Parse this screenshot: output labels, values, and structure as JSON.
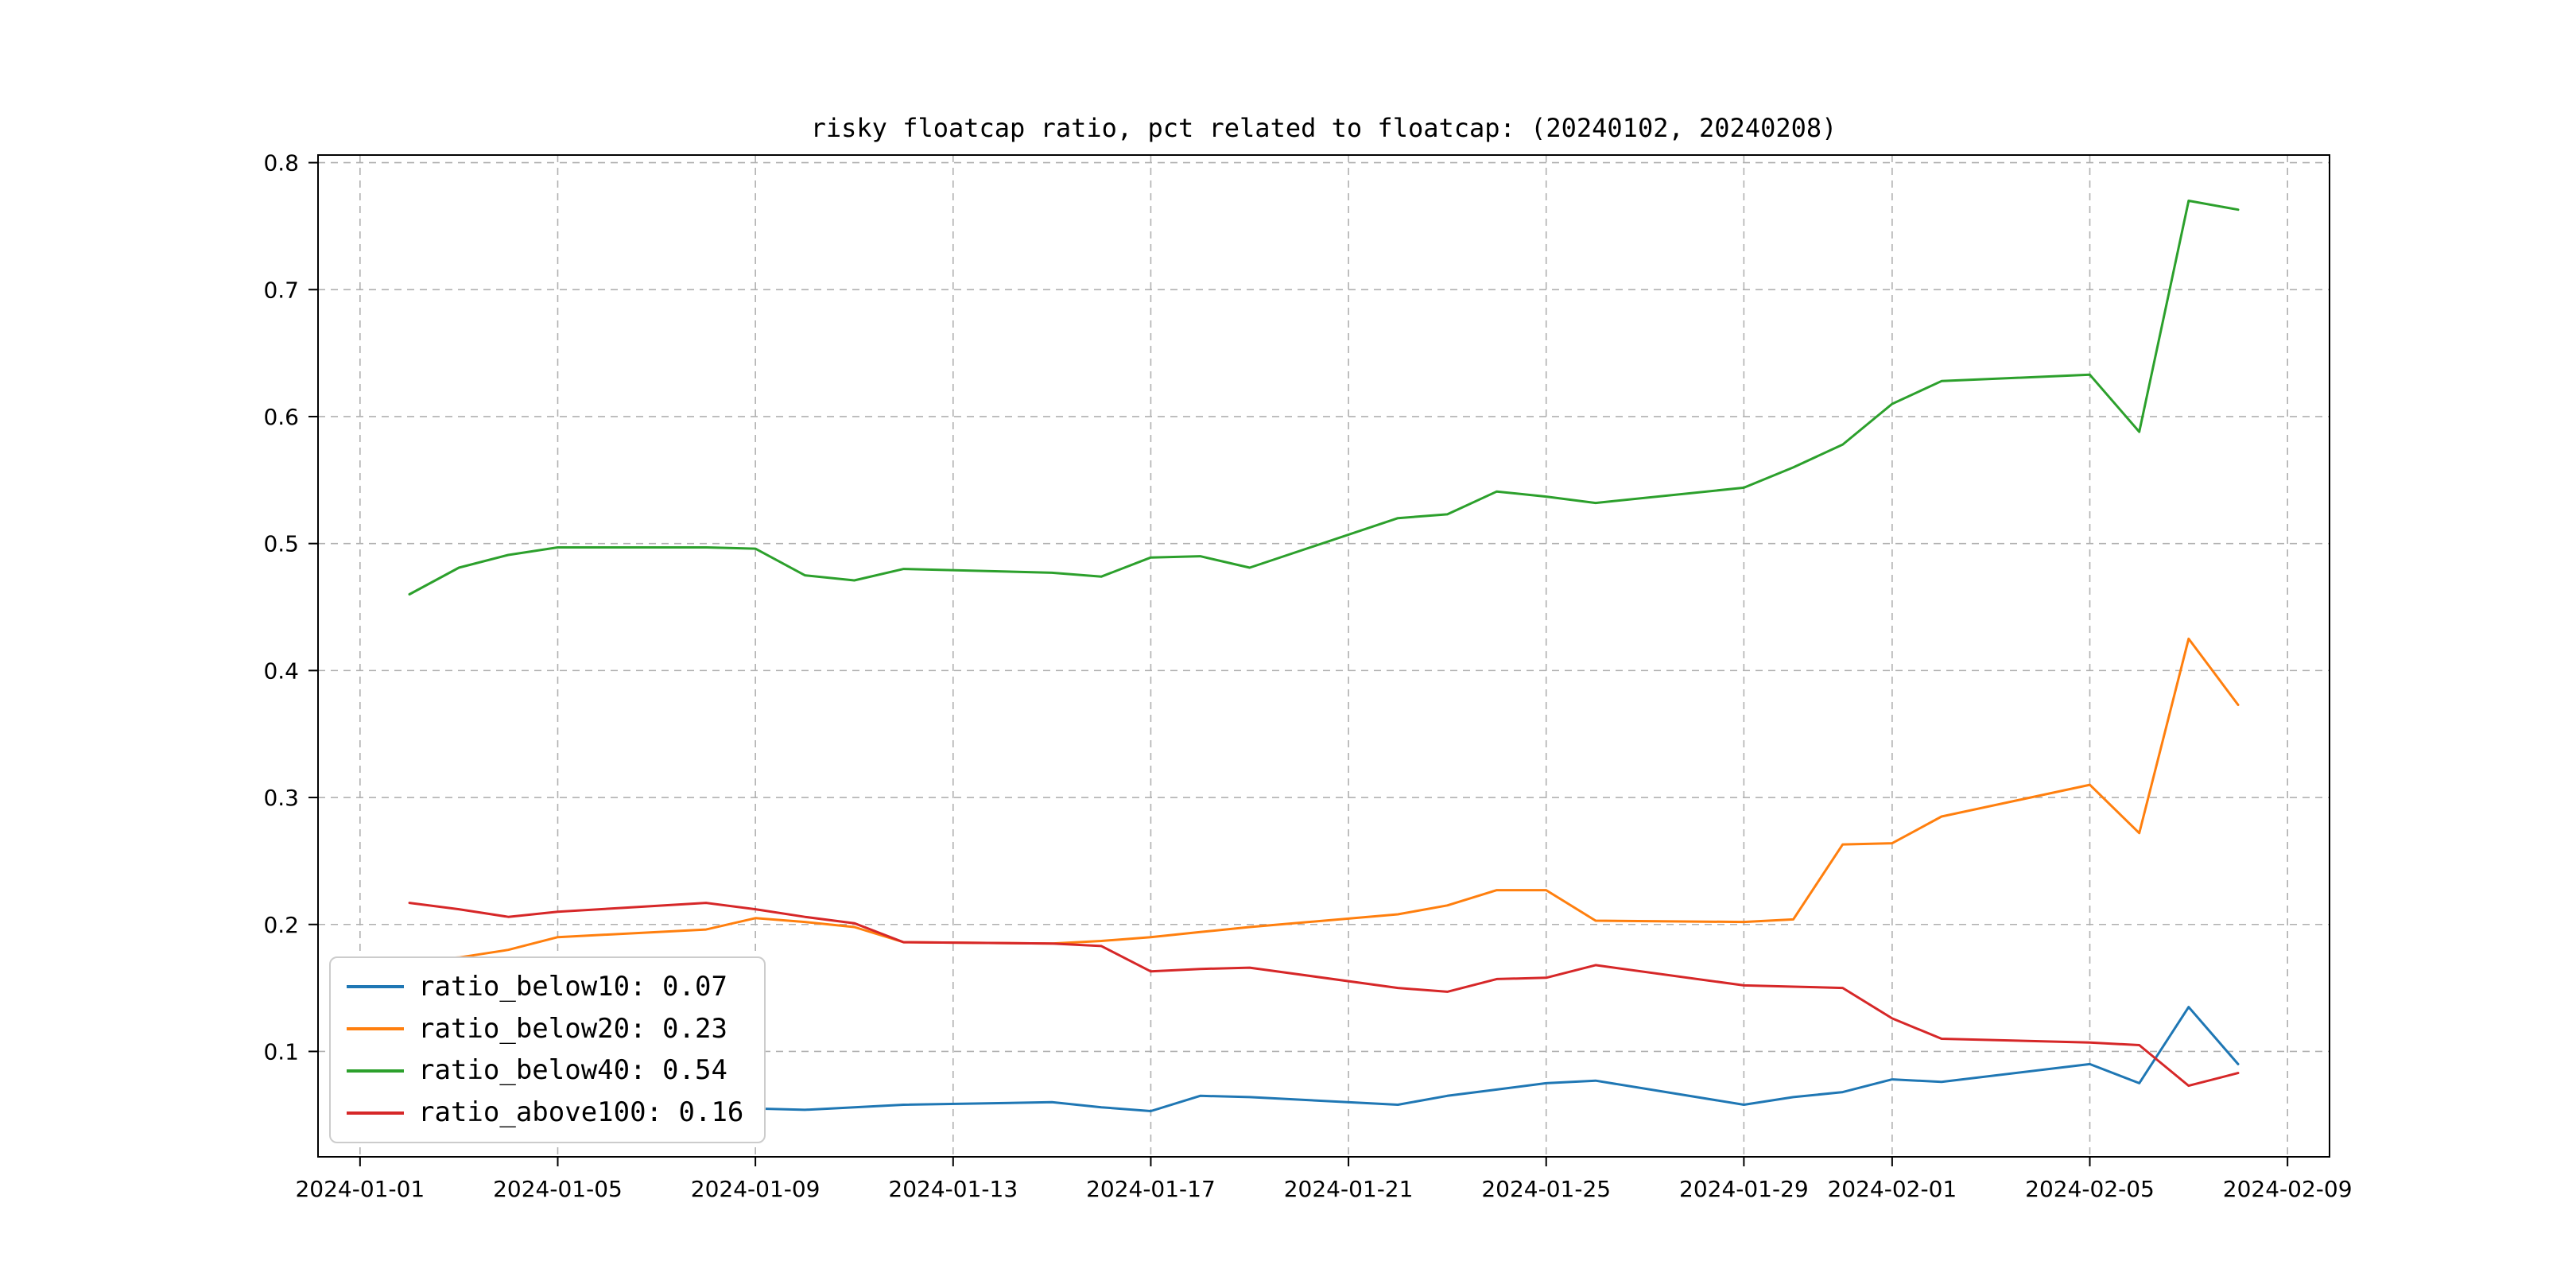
{
  "figure": {
    "title": "risky floatcap ratio, pct related to floatcap: (20240102, 20240208)"
  },
  "chart_data": {
    "type": "line",
    "title": "risky floatcap ratio, pct related to floatcap: (20240102, 20240208)",
    "xlabel": "",
    "ylabel": "",
    "grid": true,
    "grid_style": "dashed",
    "grid_color": "#b0b0b0",
    "legend_position": "lower-left",
    "xlim_days": [
      -0.85,
      39.85
    ],
    "ylim": [
      0.017,
      0.806
    ],
    "x_ticks": [
      "2024-01-01",
      "2024-01-05",
      "2024-01-09",
      "2024-01-13",
      "2024-01-17",
      "2024-01-21",
      "2024-01-25",
      "2024-01-29",
      "2024-02-01",
      "2024-02-05",
      "2024-02-09"
    ],
    "y_ticks": [
      0.1,
      0.2,
      0.3,
      0.4,
      0.5,
      0.6,
      0.7,
      0.8
    ],
    "dates": [
      "2024-01-02",
      "2024-01-03",
      "2024-01-04",
      "2024-01-05",
      "2024-01-08",
      "2024-01-09",
      "2024-01-10",
      "2024-01-11",
      "2024-01-12",
      "2024-01-15",
      "2024-01-16",
      "2024-01-17",
      "2024-01-18",
      "2024-01-19",
      "2024-01-22",
      "2024-01-23",
      "2024-01-24",
      "2024-01-25",
      "2024-01-26",
      "2024-01-29",
      "2024-01-30",
      "2024-01-31",
      "2024-02-01",
      "2024-02-02",
      "2024-02-05",
      "2024-02-06",
      "2024-02-07",
      "2024-02-08"
    ],
    "series": [
      {
        "name": "ratio_below10",
        "legend_label": "ratio_below10: 0.07",
        "color": "#1f77b4",
        "values": [
          0.065,
          0.062,
          0.06,
          0.058,
          0.056,
          0.055,
          0.054,
          0.056,
          0.058,
          0.06,
          0.056,
          0.053,
          0.065,
          0.064,
          0.058,
          0.065,
          0.07,
          0.075,
          0.077,
          0.058,
          0.064,
          0.068,
          0.078,
          0.076,
          0.09,
          0.075,
          0.135,
          0.09
        ]
      },
      {
        "name": "ratio_below20",
        "legend_label": "ratio_below20: 0.23",
        "color": "#ff7f0e",
        "values": [
          0.172,
          0.174,
          0.18,
          0.19,
          0.196,
          0.205,
          0.202,
          0.198,
          0.186,
          0.185,
          0.187,
          0.19,
          0.194,
          0.198,
          0.208,
          0.215,
          0.227,
          0.227,
          0.203,
          0.202,
          0.204,
          0.263,
          0.264,
          0.285,
          0.31,
          0.272,
          0.425,
          0.373
        ]
      },
      {
        "name": "ratio_below40",
        "legend_label": "ratio_below40: 0.54",
        "color": "#2ca02c",
        "values": [
          0.46,
          0.481,
          0.491,
          0.497,
          0.497,
          0.496,
          0.475,
          0.471,
          0.48,
          0.477,
          0.474,
          0.489,
          0.49,
          0.481,
          0.52,
          0.523,
          0.541,
          0.537,
          0.532,
          0.544,
          0.56,
          0.578,
          0.61,
          0.628,
          0.633,
          0.588,
          0.77,
          0.763
        ]
      },
      {
        "name": "ratio_above100",
        "legend_label": "ratio_above100: 0.16",
        "color": "#d62728",
        "values": [
          0.217,
          0.212,
          0.206,
          0.21,
          0.217,
          0.212,
          0.206,
          0.201,
          0.186,
          0.185,
          0.183,
          0.163,
          0.165,
          0.166,
          0.15,
          0.147,
          0.157,
          0.158,
          0.168,
          0.152,
          0.151,
          0.15,
          0.126,
          0.11,
          0.107,
          0.105,
          0.073,
          0.083
        ]
      }
    ]
  }
}
